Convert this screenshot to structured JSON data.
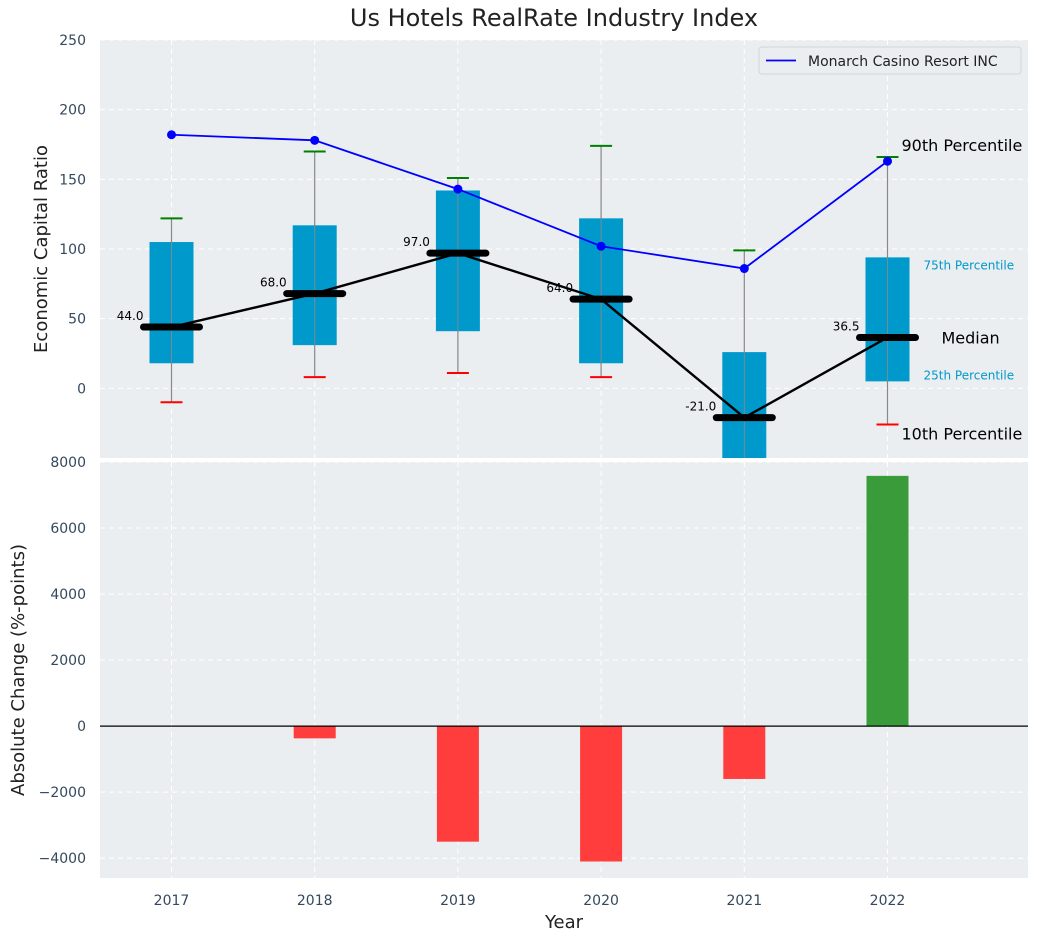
{
  "chart_data": [
    {
      "type": "box",
      "title": "Us Hotels RealRate Industry Index",
      "ylabel": "Economic Capital Ratio",
      "xlabel": "",
      "ylim": [
        -50,
        250
      ],
      "yticks": [
        0,
        50,
        100,
        150,
        200,
        250
      ],
      "categories": [
        "2017",
        "2018",
        "2019",
        "2020",
        "2021",
        "2022"
      ],
      "p10": [
        -10,
        8,
        11,
        8,
        -50,
        -26
      ],
      "p25": [
        18,
        31,
        41,
        18,
        -50,
        5
      ],
      "median": [
        44.0,
        68.0,
        97.0,
        64.0,
        -21.0,
        36.5
      ],
      "median_labels": [
        "44.0",
        "68.0",
        "97.0",
        "64.0",
        "-21.0",
        "36.5"
      ],
      "p75": [
        105,
        117,
        142,
        122,
        26,
        94
      ],
      "p90": [
        122,
        170,
        151,
        174,
        99,
        166
      ],
      "series": [
        {
          "name": "Monarch Casino Resort INC",
          "values": [
            182,
            178,
            143,
            102,
            86,
            163
          ],
          "color": "#0000ff"
        }
      ],
      "annotations": {
        "p90": "90th Percentile",
        "p75": "75th Percentile",
        "median": "Median",
        "p25": "25th Percentile",
        "p10": "10th Percentile"
      },
      "colors": {
        "box": "#0099cc",
        "median": "#000000",
        "p90_cap": "#008000",
        "p10_cap": "#ff0000",
        "background": "#eaeef0"
      }
    },
    {
      "type": "bar",
      "xlabel": "Year",
      "ylabel": "Absolute Change (%-points)",
      "ylim": [
        -4600,
        8000
      ],
      "yticks": [
        -4000,
        -2000,
        0,
        2000,
        4000,
        6000,
        8000
      ],
      "ytick_labels": [
        "−4000",
        "−2000",
        "0",
        "2000",
        "4000",
        "6000",
        "8000"
      ],
      "categories": [
        "2017",
        "2018",
        "2019",
        "2020",
        "2021",
        "2022"
      ],
      "values": [
        0,
        -370,
        -3500,
        -4100,
        -1600,
        7580
      ],
      "colors": {
        "positive": "#3a9b3a",
        "negative": "#ff3d3d"
      }
    }
  ]
}
